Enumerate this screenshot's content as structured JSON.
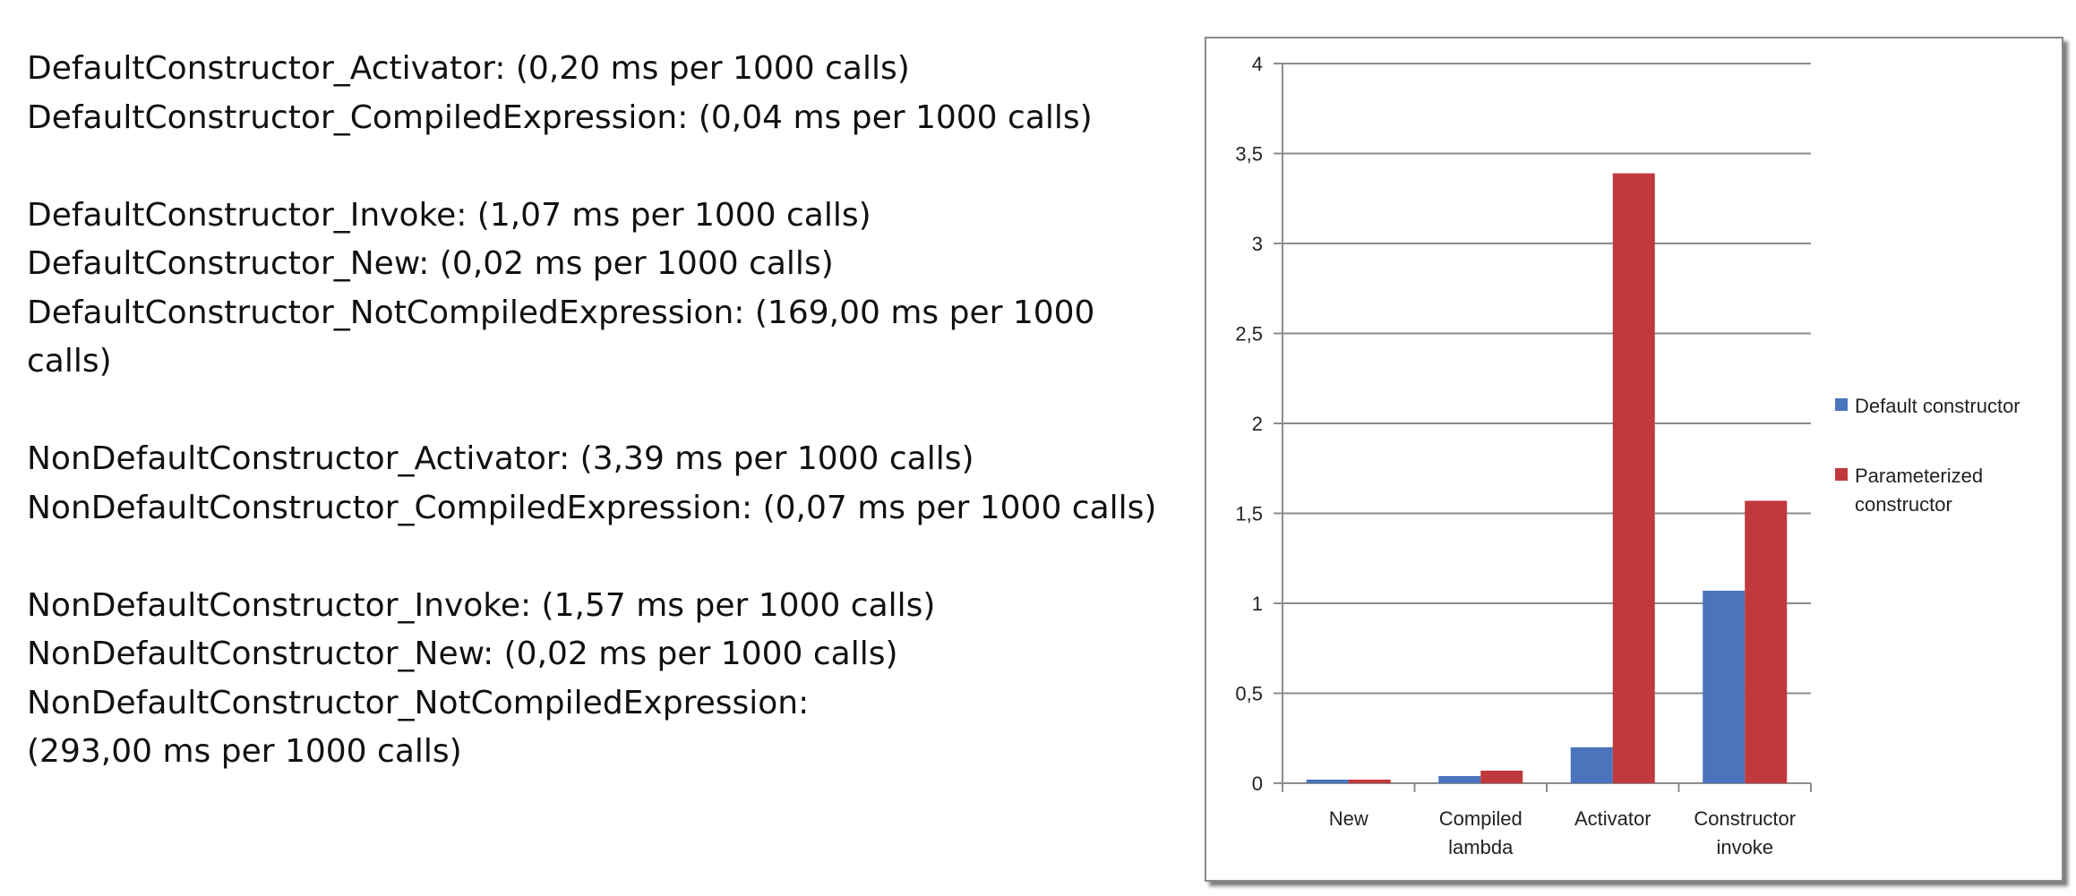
{
  "text_lines": [
    "DefaultConstructor_Activator: (0,20 ms per 1000 calls)",
    "DefaultConstructor_CompiledExpression: (0,04 ms per 1000 calls)",
    "",
    "DefaultConstructor_Invoke: (1,07 ms per 1000 calls)",
    "DefaultConstructor_New: (0,02 ms per 1000 calls)",
    "DefaultConstructor_NotCompiledExpression: (169,00 ms per 1000",
    "calls)",
    "",
    "NonDefaultConstructor_Activator: (3,39 ms per 1000 calls)",
    "NonDefaultConstructor_CompiledExpression: (0,07 ms per 1000 calls)",
    "",
    "NonDefaultConstructor_Invoke: (1,57 ms per 1000 calls)",
    "NonDefaultConstructor_New: (0,02 ms per 1000 calls)",
    "NonDefaultConstructor_NotCompiledExpression:",
    "(293,00 ms per 1000 calls)"
  ],
  "chart_data": {
    "type": "bar",
    "title": "",
    "xlabel": "",
    "ylabel": "",
    "categories": [
      [
        "New"
      ],
      [
        "Compiled",
        "lambda"
      ],
      [
        "Activator"
      ],
      [
        "Constructor",
        "invoke"
      ]
    ],
    "series": [
      {
        "name": "Default constructor",
        "values": [
          0.02,
          0.04,
          0.2,
          1.07
        ],
        "color": "#4a74bb"
      },
      {
        "name": "Parameterized constructor",
        "legend_lines": [
          "Parameterized",
          "constructor"
        ],
        "values": [
          0.02,
          0.07,
          3.39,
          1.57
        ],
        "color": "#c0393c"
      }
    ],
    "ylim": [
      0,
      4
    ],
    "yticks": [
      0,
      0.5,
      1,
      1.5,
      2,
      2.5,
      3,
      3.5,
      4
    ],
    "ytick_labels": [
      "0",
      "0,5",
      "1",
      "1,5",
      "2",
      "2,5",
      "3",
      "3,5",
      "4"
    ],
    "grid": true,
    "legend_position": "right"
  }
}
